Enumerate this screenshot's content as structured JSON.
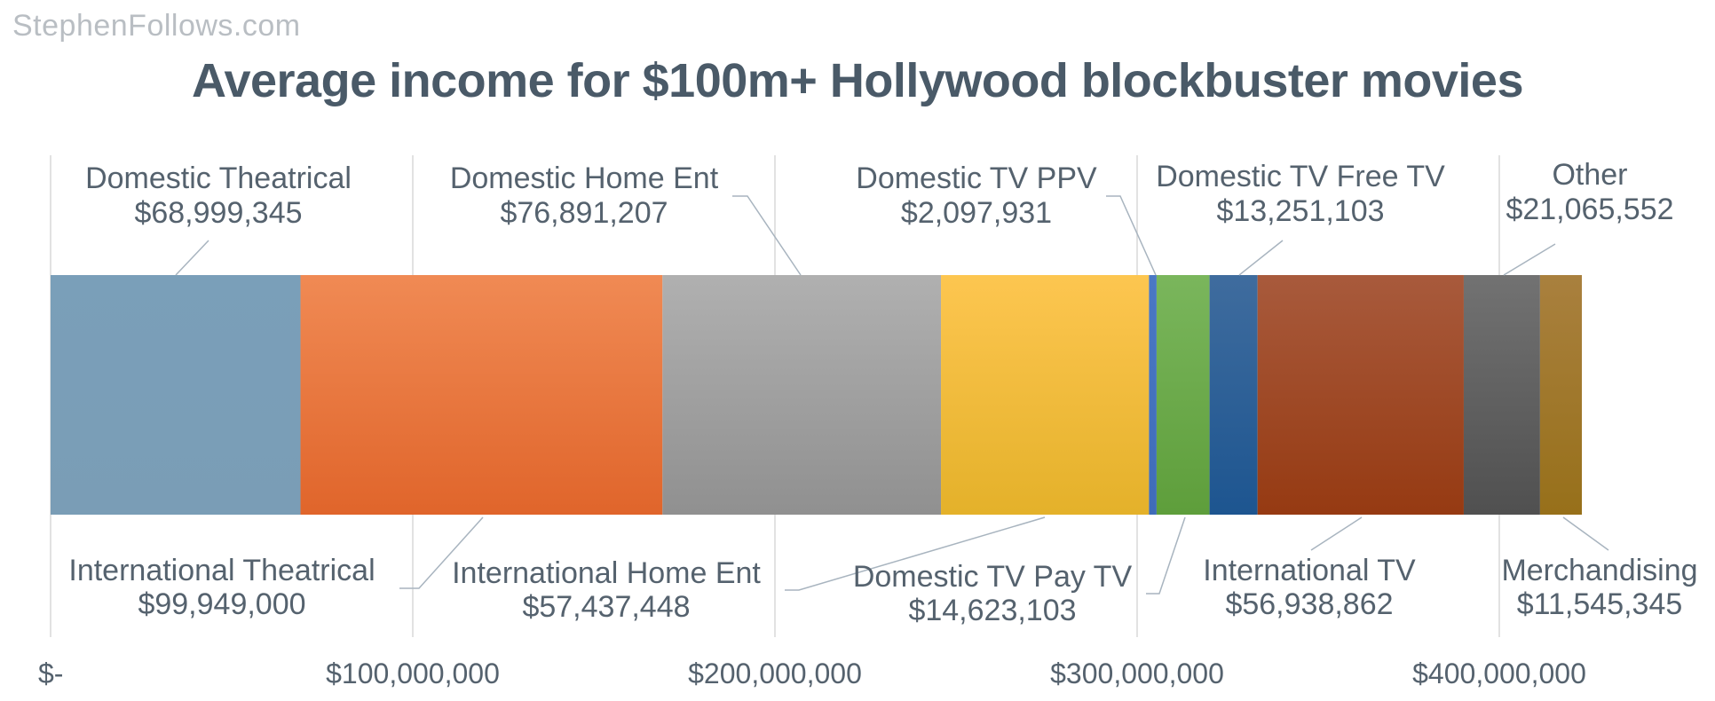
{
  "watermark": "StephenFollows.com",
  "chart_data": {
    "type": "bar",
    "orientation": "horizontal-stacked",
    "title": "Average income for $100m+ Hollywood blockbuster movies",
    "xlim": [
      0,
      460000000
    ],
    "xticks": [
      0,
      100000000,
      200000000,
      300000000,
      400000000
    ],
    "xtick_labels": [
      "$-",
      "$100,000,000",
      "$200,000,000",
      "$300,000,000",
      "$400,000,000"
    ],
    "grid": true,
    "series": [
      {
        "name": "Domestic Theatrical",
        "value": 68999345,
        "label": "$68,999,345",
        "color": "#7a9fb9",
        "color2": "#7a9db6",
        "pos": "top"
      },
      {
        "name": "International Theatrical",
        "value": 99949000,
        "label": "$99,949,000",
        "color": "#f08a54",
        "color2": "#e0652b",
        "pos": "bottom"
      },
      {
        "name": "Domestic Home Ent",
        "value": 76891207,
        "label": "$76,891,207",
        "color": "#b0b0b0",
        "color2": "#909090",
        "pos": "top"
      },
      {
        "name": "International Home Ent",
        "value": 57437448,
        "label": "$57,437,448",
        "color": "#fdc650",
        "color2": "#e4b12a",
        "pos": "bottom"
      },
      {
        "name": "Domestic TV PPV",
        "value": 2097931,
        "label": "$2,097,931",
        "color": "#4a78c4",
        "color2": "#3f6cb8",
        "pos": "top"
      },
      {
        "name": "Domestic TV Pay TV",
        "value": 14623103,
        "label": "$14,623,103",
        "color": "#7ab65c",
        "color2": "#5e9e3b",
        "pos": "bottom"
      },
      {
        "name": "Domestic TV Free TV",
        "value": 13251103,
        "label": "$13,251,103",
        "color": "#3f6c9e",
        "color2": "#1d5590",
        "pos": "top"
      },
      {
        "name": "International TV",
        "value": 56938862,
        "label": "$56,938,862",
        "color": "#a85a3c",
        "color2": "#963a12",
        "pos": "bottom"
      },
      {
        "name": "Other",
        "value": 21065552,
        "label": "$21,065,552",
        "color": "#727272",
        "color2": "#505050",
        "pos": "top"
      },
      {
        "name": "Merchandising",
        "value": 11545345,
        "label": "$11,545,345",
        "color": "#a9803e",
        "color2": "#97701a",
        "pos": "bottom"
      }
    ]
  }
}
